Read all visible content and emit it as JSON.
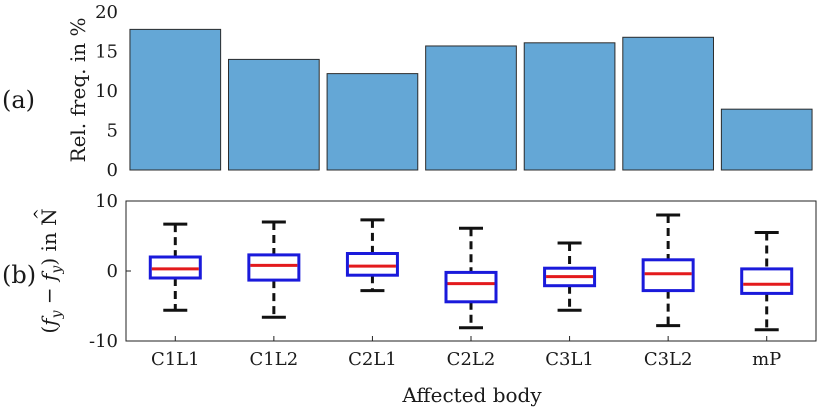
{
  "figure": {
    "panel_labels": [
      "(a)",
      "(b)"
    ],
    "xlabel": "Affected body"
  },
  "chart_data": [
    {
      "type": "bar",
      "panel": "(a)",
      "ylabel": "Rel. freq. in %",
      "categories": [
        "C1L1",
        "C1L2",
        "C2L1",
        "C2L2",
        "C3L1",
        "C3L2",
        "mP"
      ],
      "values": [
        17.8,
        14.0,
        12.2,
        15.7,
        16.1,
        16.8,
        7.7
      ],
      "ylim": [
        0,
        20
      ],
      "yticks": [
        0,
        5,
        10,
        15,
        20
      ],
      "colors": {
        "bar": "#64a7d6",
        "bar_edge": "#2b2b2b"
      }
    },
    {
      "type": "box",
      "panel": "(b)",
      "ylabel": "(f_y − f̂_y) in N",
      "ylabel_parts": {
        "open": "(",
        "f": "f",
        "sub": "y",
        "minus": " − ",
        "fhat": "f",
        "hat": "^",
        "close": ") in N"
      },
      "categories": [
        "C1L1",
        "C1L2",
        "C2L1",
        "C2L2",
        "C3L1",
        "C3L2",
        "mP"
      ],
      "ylim": [
        -10,
        10
      ],
      "yticks": [
        -10,
        0,
        10
      ],
      "boxes": [
        {
          "min": -5.6,
          "q1": -1.0,
          "median": 0.3,
          "q3": 2.0,
          "max": 6.7
        },
        {
          "min": -6.6,
          "q1": -1.3,
          "median": 0.8,
          "q3": 2.3,
          "max": 7.0
        },
        {
          "min": -2.8,
          "q1": -0.6,
          "median": 0.7,
          "q3": 2.5,
          "max": 7.3
        },
        {
          "min": -8.1,
          "q1": -4.4,
          "median": -1.8,
          "q3": -0.2,
          "max": 6.1
        },
        {
          "min": -5.6,
          "q1": -2.1,
          "median": -0.8,
          "q3": 0.4,
          "max": 4.0
        },
        {
          "min": -7.8,
          "q1": -2.8,
          "median": -0.4,
          "q3": 1.6,
          "max": 8.0
        },
        {
          "min": -8.4,
          "q1": -3.2,
          "median": -1.9,
          "q3": 0.3,
          "max": 5.5
        }
      ],
      "colors": {
        "box": "#1a1adb",
        "median": "#e31a1c",
        "whisker": "#111111"
      }
    }
  ]
}
